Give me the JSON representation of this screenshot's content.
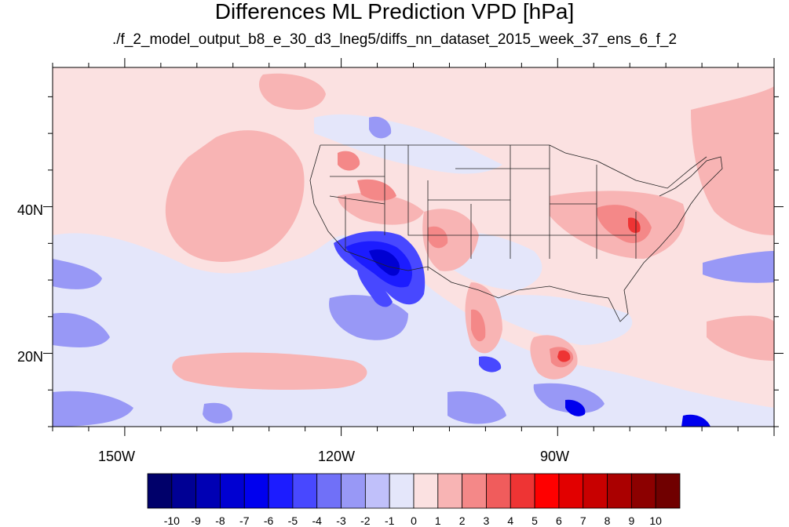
{
  "title": "Differences ML Prediction VPD [hPa]",
  "subtitle": "./f_2_model_output_b8_e_30_d3_lneg5/diffs_nn_dataset_2015_week_37_ens_6_f_2",
  "map": {
    "region": "continental United States, eastern North Pacific, Mexico",
    "lon_range": [
      -160,
      -60
    ],
    "lat_range": [
      10,
      59
    ],
    "lat_labels": [
      "40N",
      "20N"
    ],
    "lat_label_values": [
      40,
      20
    ],
    "lon_labels": [
      "150W",
      "120W",
      "90W"
    ],
    "lon_label_values": [
      -150,
      -120,
      -90
    ],
    "background_color": "#fbe1e1"
  },
  "colorbar": {
    "labels": [
      "-10",
      "-9",
      "-8",
      "-7",
      "-6",
      "-5",
      "-4",
      "-3",
      "-2",
      "-1",
      "0",
      "1",
      "2",
      "3",
      "4",
      "5",
      "6",
      "7",
      "8",
      "9",
      "10"
    ],
    "colors": [
      "#00006a",
      "#000094",
      "#0000b4",
      "#0000d2",
      "#0000ee",
      "#1c1cff",
      "#4848ff",
      "#7070f8",
      "#9898f6",
      "#c0c0fa",
      "#e4e6fa",
      "#fbe1e1",
      "#f8b4b4",
      "#f48888",
      "#f05c5c",
      "#ee3434",
      "#ff0000",
      "#e20000",
      "#c80000",
      "#aa0000",
      "#8c0000",
      "#700000"
    ]
  }
}
